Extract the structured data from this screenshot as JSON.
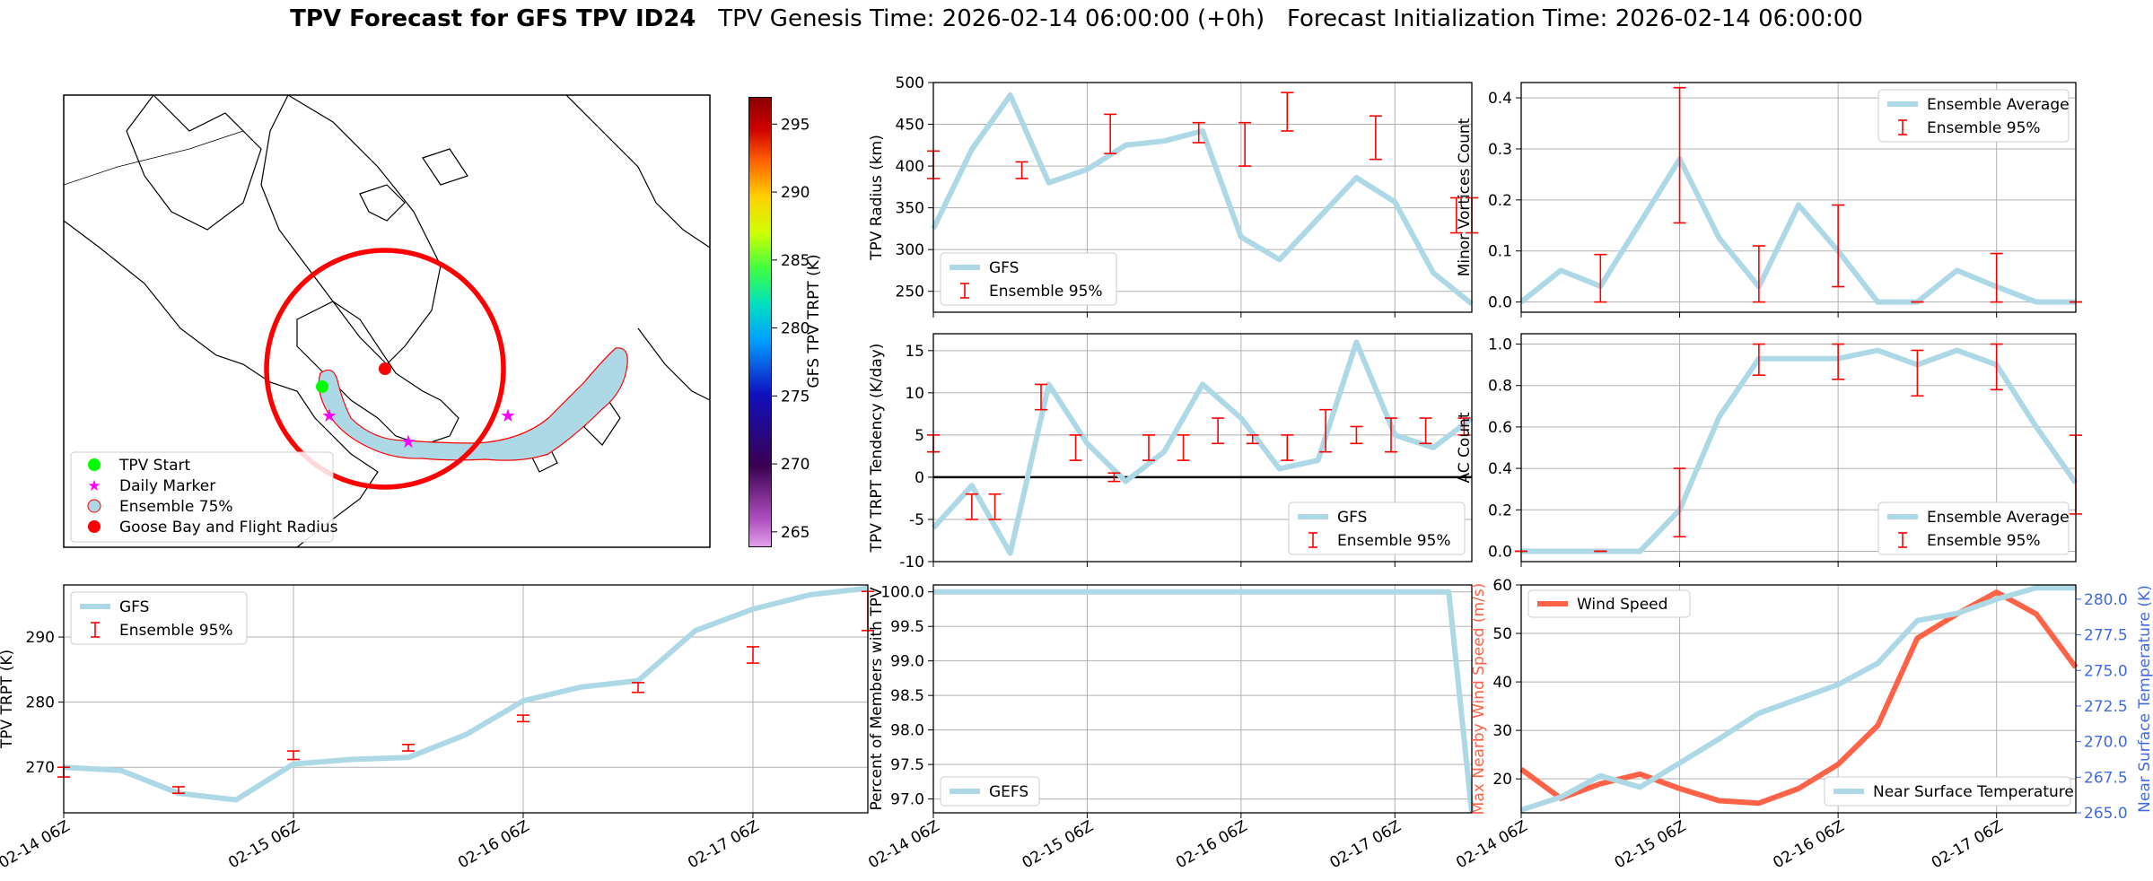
{
  "title": {
    "bold": "TPV Forecast for GFS TPV ID24",
    "genesis": "TPV Genesis Time: 2026-02-14 06:00:00 (+0h)",
    "init": "Forecast Initialization Time: 2026-02-14 06:00:00"
  },
  "map": {
    "colorbar_label": "GFS TPV TRPT (K)",
    "colorbar_ticks": [
      "295",
      "290",
      "285",
      "280",
      "275",
      "270",
      "265"
    ],
    "colorbar_range": [
      264,
      297
    ],
    "legend": [
      "TPV Start",
      "Daily Marker",
      "Ensemble 75%",
      "Goose Bay and Flight Radius"
    ],
    "colors": {
      "start": "#00ff00",
      "marker": "#ff00ff",
      "ensemble": "#add8e6",
      "goose": "#ff0000"
    }
  },
  "x_ticks": [
    "02-14 06Z",
    "02-15 06Z",
    "02-16 06Z",
    "02-17 06Z"
  ],
  "chart_data": [
    {
      "id": "radius",
      "type": "line",
      "ylabel": "TPV Radius (km)",
      "ylim": [
        225,
        500
      ],
      "yticks": [
        250,
        300,
        350,
        400,
        450,
        500
      ],
      "xlim": [
        0,
        14
      ],
      "series": [
        {
          "name": "GFS",
          "x": [
            0,
            1,
            2,
            3,
            4,
            5,
            6,
            7,
            8,
            9,
            10,
            11,
            12,
            13,
            14
          ],
          "values": [
            325,
            420,
            485,
            380,
            396,
            425,
            430,
            442,
            315,
            288,
            337,
            386,
            357,
            272,
            235
          ]
        }
      ],
      "errorbars": {
        "name": "Ensemble 95%",
        "x": [
          0,
          2.3,
          4.6,
          6.9,
          8.1,
          9.2,
          11.5,
          13.6,
          14
        ],
        "low": [
          385,
          385,
          415,
          428,
          400,
          442,
          408,
          320,
          320
        ],
        "high": [
          418,
          405,
          462,
          452,
          452,
          488,
          460,
          362,
          362
        ]
      },
      "legend": [
        "GFS",
        "Ensemble 95%"
      ]
    },
    {
      "id": "vortices",
      "type": "line",
      "ylabel": "Minor Vortices Count",
      "ylim": [
        -0.02,
        0.43
      ],
      "yticks": [
        0.0,
        0.1,
        0.2,
        0.3,
        0.4
      ],
      "xlim": [
        0,
        14
      ],
      "series": [
        {
          "name": "Ensemble Average",
          "x": [
            0,
            1,
            2,
            3,
            4,
            5,
            6,
            7,
            8,
            9,
            10,
            11,
            12,
            13,
            14
          ],
          "values": [
            0,
            0.062,
            0.031,
            0.155,
            0.28,
            0.125,
            0.03,
            0.19,
            0.1,
            0,
            0,
            0.062,
            0.03,
            0,
            0
          ]
        }
      ],
      "errorbars": {
        "name": "Ensemble 95%",
        "x": [
          2,
          4,
          6,
          8,
          10,
          12,
          14
        ],
        "low": [
          0,
          0.155,
          0,
          0.03,
          0,
          0,
          0
        ],
        "high": [
          0.093,
          0.42,
          0.11,
          0.19,
          0,
          0.095,
          0
        ]
      },
      "legend": [
        "Ensemble Average",
        "Ensemble 95%"
      ]
    },
    {
      "id": "tendency",
      "type": "line",
      "ylabel": "TPV TRPT Tendency (K/day)",
      "ylim": [
        -10,
        17
      ],
      "yticks": [
        -10,
        -5,
        0,
        5,
        10,
        15
      ],
      "xlim": [
        0,
        14
      ],
      "series": [
        {
          "name": "GFS",
          "x": [
            0,
            1,
            2,
            3,
            4,
            5,
            6,
            7,
            8,
            9,
            10,
            11,
            12,
            13,
            14
          ],
          "values": [
            -6,
            -1,
            -9,
            11,
            4,
            -0.5,
            3,
            11,
            7,
            1,
            2,
            16,
            5,
            3.5,
            7
          ]
        }
      ],
      "errorbars": {
        "name": "Ensemble 95%",
        "x": [
          0,
          1,
          1.6,
          2.8,
          3.7,
          4.7,
          5.6,
          6.5,
          7.4,
          8.3,
          9.2,
          10.2,
          11,
          11.9,
          12.8,
          13.8
        ],
        "low": [
          3,
          -5,
          -5,
          8,
          2,
          -0.5,
          2,
          2,
          4,
          4,
          2,
          3,
          4,
          3,
          4,
          5
        ],
        "high": [
          5,
          -2,
          -2,
          11,
          5,
          0.5,
          5,
          5,
          7,
          5,
          5,
          8,
          6,
          7,
          7,
          7
        ]
      },
      "hline": 0,
      "legend": [
        "GFS",
        "Ensemble 95%"
      ]
    },
    {
      "id": "ac",
      "type": "line",
      "ylabel": "AC Count",
      "ylim": [
        -0.05,
        1.05
      ],
      "yticks": [
        0.0,
        0.2,
        0.4,
        0.6,
        0.8,
        1.0
      ],
      "xlim": [
        0,
        14
      ],
      "series": [
        {
          "name": "Ensemble Average",
          "x": [
            0,
            1,
            2,
            3,
            4,
            5,
            6,
            7,
            8,
            9,
            10,
            11,
            12,
            13,
            14
          ],
          "values": [
            0,
            0,
            0,
            0,
            0.2,
            0.65,
            0.93,
            0.93,
            0.93,
            0.97,
            0.9,
            0.97,
            0.9,
            0.6,
            0.33
          ]
        }
      ],
      "errorbars": {
        "name": "Ensemble 95%",
        "x": [
          0,
          2,
          4,
          6,
          8,
          10,
          12,
          14
        ],
        "low": [
          0,
          0,
          0.07,
          0.85,
          0.83,
          0.75,
          0.78,
          0.18
        ],
        "high": [
          0,
          0,
          0.4,
          1.0,
          1.0,
          0.97,
          1.0,
          0.56
        ]
      },
      "legend": [
        "Ensemble Average",
        "Ensemble 95%"
      ]
    },
    {
      "id": "trpt",
      "type": "line",
      "ylabel": "TPV TRPT (K)",
      "ylim": [
        263,
        298
      ],
      "yticks": [
        270,
        280,
        290
      ],
      "xlim": [
        0,
        14
      ],
      "series": [
        {
          "name": "GFS",
          "x": [
            0,
            1,
            2,
            3,
            4,
            5,
            6,
            7,
            8,
            9,
            10,
            11,
            12,
            13,
            14
          ],
          "values": [
            270,
            269.5,
            266,
            265,
            270.5,
            271.2,
            271.5,
            275,
            280.2,
            282.3,
            283.3,
            291,
            294.3,
            296.5,
            297.5
          ]
        }
      ],
      "errorbars": {
        "name": "Ensemble 95%",
        "x": [
          0,
          2,
          4,
          6,
          8,
          10,
          12,
          14
        ],
        "low": [
          268.5,
          266,
          271.2,
          272.5,
          277,
          281.5,
          286,
          291
        ],
        "high": [
          270,
          267,
          272.5,
          273.5,
          278,
          283,
          288.5,
          297
        ]
      },
      "legend": [
        "GFS",
        "Ensemble 95%"
      ]
    },
    {
      "id": "members",
      "type": "line",
      "ylabel": "Percent of Members with TPV",
      "ylim": [
        96.8,
        100.1
      ],
      "yticks": [
        97.0,
        97.5,
        98.0,
        98.5,
        99.0,
        99.5,
        100.0
      ],
      "xlim": [
        0,
        14
      ],
      "series": [
        {
          "name": "GEFS",
          "x": [
            0,
            13.4,
            14
          ],
          "values": [
            100,
            100,
            96.8
          ]
        }
      ],
      "legend": [
        "GEFS"
      ]
    },
    {
      "id": "wind",
      "type": "line",
      "ylabel": "Max Nearby Wind Speed (m/s)",
      "ylabel2": "Near Surface Temperature (K)",
      "ylim": [
        13,
        60
      ],
      "ylim2": [
        265,
        281
      ],
      "yticks": [
        20,
        30,
        40,
        50,
        60
      ],
      "yticks2": [
        265.0,
        267.5,
        270.0,
        272.5,
        275.0,
        277.5,
        280.0
      ],
      "xlim": [
        0,
        14
      ],
      "series": [
        {
          "name": "Wind Speed",
          "axis": "left",
          "x": [
            0,
            1,
            2,
            3,
            4,
            5,
            6,
            7,
            8,
            9,
            10,
            11,
            12,
            13,
            14
          ],
          "values": [
            22,
            16,
            19,
            21,
            18,
            15.5,
            15,
            18,
            23,
            31,
            49,
            54,
            58.5,
            54,
            43
          ]
        },
        {
          "name": "Near Surface Temperature",
          "axis": "right",
          "x": [
            0,
            1,
            2,
            3,
            4,
            5,
            6,
            7,
            8,
            9,
            10,
            11,
            12,
            13,
            14
          ],
          "values": [
            265.2,
            266.1,
            267.6,
            266.8,
            268.5,
            270.2,
            272,
            273,
            274,
            275.5,
            278.5,
            279,
            280,
            280.8,
            280.8
          ]
        }
      ],
      "legend": [
        "Wind Speed",
        "Near Surface Temperature"
      ]
    }
  ]
}
